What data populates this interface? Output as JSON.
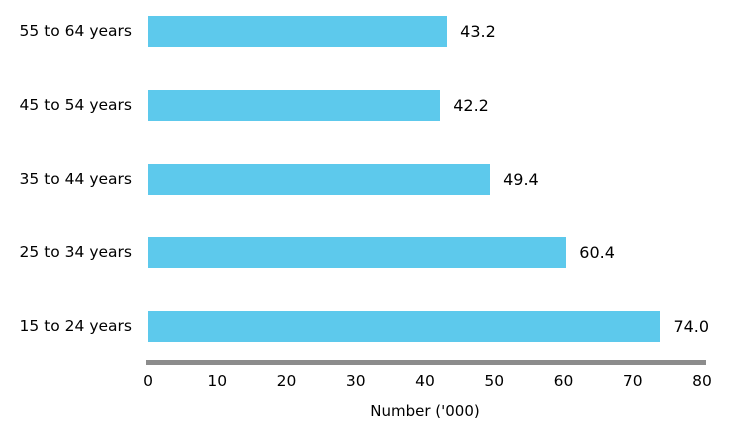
{
  "chart_data": {
    "type": "bar",
    "orientation": "horizontal",
    "title": "",
    "xlabel": "Number ('000)",
    "ylabel": "",
    "categories": [
      "55 to 64 years",
      "45 to 54 years",
      "35 to 44 years",
      "25 to 34 years",
      "15 to 24 years"
    ],
    "values": [
      43.2,
      42.2,
      49.4,
      60.4,
      74.0
    ],
    "value_labels": [
      "43.2",
      "42.2",
      "49.4",
      "60.4",
      "74.0"
    ],
    "xlim": [
      0,
      80
    ],
    "xticks": [
      0,
      10,
      20,
      30,
      40,
      50,
      60,
      70,
      80
    ],
    "grid": false,
    "legend": false,
    "bar_color": "#5DC9EC",
    "axis_line_color": "#8C8C8C",
    "text_color": "#000000"
  }
}
